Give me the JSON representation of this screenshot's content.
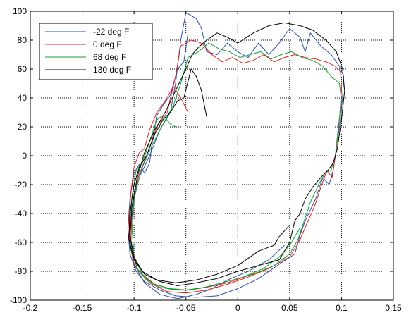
{
  "chart_data": {
    "type": "line",
    "title": "",
    "xlabel": "",
    "ylabel": "",
    "xlim": [
      -0.2,
      0.15
    ],
    "ylim": [
      -100,
      100
    ],
    "xticks": [
      -0.2,
      -0.15,
      -0.1,
      -0.05,
      0,
      0.05,
      0.1,
      0.15
    ],
    "yticks": [
      -100,
      -80,
      -60,
      -40,
      -20,
      0,
      20,
      40,
      60,
      80,
      100
    ],
    "xtick_labels": [
      "-0.2",
      "-0.15",
      "-0.1",
      "-0.05",
      "0",
      "0.05",
      "0.1",
      "0.15"
    ],
    "ytick_labels": [
      "-100",
      "-80",
      "-60",
      "-40",
      "-20",
      "0",
      "20",
      "40",
      "60",
      "80",
      "100"
    ],
    "grid": true,
    "legend_position": "top-left",
    "series": [
      {
        "name": "-22 deg F",
        "color": "#2e4fa8",
        "points": [
          [
            -0.048,
            85
          ],
          [
            -0.052,
            65
          ],
          [
            -0.058,
            60
          ],
          [
            -0.065,
            42
          ],
          [
            -0.072,
            35
          ],
          [
            -0.078,
            28
          ],
          [
            -0.082,
            12
          ],
          [
            -0.085,
            -5
          ],
          [
            -0.09,
            -12
          ],
          [
            -0.095,
            -6
          ],
          [
            -0.1,
            -12
          ],
          [
            -0.104,
            -30
          ],
          [
            -0.106,
            -50
          ],
          [
            -0.104,
            -68
          ],
          [
            -0.098,
            -80
          ],
          [
            -0.09,
            -87
          ],
          [
            -0.075,
            -93
          ],
          [
            -0.06,
            -97
          ],
          [
            -0.04,
            -98
          ],
          [
            -0.02,
            -97
          ],
          [
            0.0,
            -92
          ],
          [
            0.02,
            -85
          ],
          [
            0.04,
            -75
          ],
          [
            0.055,
            -68
          ],
          [
            0.06,
            -55
          ],
          [
            0.065,
            -45
          ],
          [
            0.075,
            -30
          ],
          [
            0.082,
            -15
          ],
          [
            0.088,
            -20
          ],
          [
            0.092,
            -10
          ],
          [
            0.096,
            10
          ],
          [
            0.099,
            25
          ],
          [
            0.101,
            40
          ],
          [
            0.102,
            55
          ],
          [
            0.098,
            62
          ],
          [
            0.09,
            70
          ],
          [
            0.08,
            76
          ],
          [
            0.07,
            85
          ],
          [
            0.065,
            72
          ],
          [
            0.06,
            82
          ],
          [
            0.05,
            88
          ],
          [
            0.04,
            78
          ],
          [
            0.03,
            70
          ],
          [
            0.02,
            78
          ],
          [
            0.01,
            68
          ],
          [
            0.0,
            72
          ],
          [
            -0.01,
            78
          ],
          [
            -0.02,
            70
          ],
          [
            -0.03,
            72
          ],
          [
            -0.035,
            88
          ],
          [
            -0.04,
            95
          ],
          [
            -0.05,
            99
          ],
          [
            -0.055,
            80
          ],
          [
            -0.06,
            50
          ],
          [
            -0.065,
            30
          ],
          [
            -0.075,
            18
          ],
          [
            -0.085,
            0
          ],
          [
            -0.095,
            -15
          ],
          [
            -0.1,
            -30
          ],
          [
            -0.104,
            -55
          ],
          [
            -0.1,
            -75
          ],
          [
            -0.09,
            -88
          ],
          [
            -0.075,
            -96
          ],
          [
            -0.058,
            -99
          ],
          [
            -0.04,
            -96
          ],
          [
            -0.025,
            -92
          ],
          [
            -0.01,
            -86
          ],
          [
            0.01,
            -80
          ],
          [
            0.03,
            -72
          ],
          [
            0.045,
            -62
          ]
        ]
      },
      {
        "name": "0 deg F",
        "color": "#e0201e",
        "points": [
          [
            -0.048,
            30
          ],
          [
            -0.055,
            40
          ],
          [
            -0.062,
            48
          ],
          [
            -0.07,
            38
          ],
          [
            -0.078,
            30
          ],
          [
            -0.085,
            18
          ],
          [
            -0.09,
            5
          ],
          [
            -0.095,
            2
          ],
          [
            -0.1,
            -8
          ],
          [
            -0.103,
            -25
          ],
          [
            -0.105,
            -45
          ],
          [
            -0.104,
            -62
          ],
          [
            -0.1,
            -75
          ],
          [
            -0.092,
            -83
          ],
          [
            -0.08,
            -89
          ],
          [
            -0.065,
            -92
          ],
          [
            -0.048,
            -93
          ],
          [
            -0.03,
            -91
          ],
          [
            -0.01,
            -88
          ],
          [
            0.01,
            -83
          ],
          [
            0.03,
            -78
          ],
          [
            0.05,
            -70
          ],
          [
            0.06,
            -58
          ],
          [
            0.066,
            -48
          ],
          [
            0.074,
            -35
          ],
          [
            0.08,
            -22
          ],
          [
            0.086,
            -10
          ],
          [
            0.091,
            -15
          ],
          [
            0.095,
            5
          ],
          [
            0.098,
            25
          ],
          [
            0.1,
            45
          ],
          [
            0.099,
            58
          ],
          [
            0.094,
            62
          ],
          [
            0.085,
            65
          ],
          [
            0.075,
            67
          ],
          [
            0.065,
            68
          ],
          [
            0.055,
            70
          ],
          [
            0.045,
            68
          ],
          [
            0.035,
            65
          ],
          [
            0.025,
            70
          ],
          [
            0.015,
            66
          ],
          [
            0.005,
            64
          ],
          [
            -0.005,
            68
          ],
          [
            -0.015,
            65
          ],
          [
            -0.025,
            70
          ],
          [
            -0.035,
            78
          ],
          [
            -0.045,
            80
          ],
          [
            -0.055,
            76
          ],
          [
            -0.06,
            55
          ],
          [
            -0.068,
            30
          ],
          [
            -0.078,
            20
          ],
          [
            -0.088,
            0
          ],
          [
            -0.096,
            -15
          ],
          [
            -0.102,
            -35
          ],
          [
            -0.103,
            -60
          ],
          [
            -0.097,
            -78
          ],
          [
            -0.085,
            -88
          ],
          [
            -0.068,
            -94
          ],
          [
            -0.05,
            -95
          ],
          [
            -0.03,
            -93
          ],
          [
            -0.01,
            -89
          ],
          [
            0.01,
            -84
          ],
          [
            0.03,
            -78
          ]
        ]
      },
      {
        "name": "68 deg F",
        "color": "#15a235",
        "points": [
          [
            -0.06,
            20
          ],
          [
            -0.065,
            22
          ],
          [
            -0.072,
            28
          ],
          [
            -0.078,
            25
          ],
          [
            -0.085,
            10
          ],
          [
            -0.092,
            -5
          ],
          [
            -0.098,
            -10
          ],
          [
            -0.102,
            -28
          ],
          [
            -0.104,
            -48
          ],
          [
            -0.103,
            -65
          ],
          [
            -0.097,
            -78
          ],
          [
            -0.088,
            -86
          ],
          [
            -0.075,
            -91
          ],
          [
            -0.06,
            -93
          ],
          [
            -0.045,
            -93
          ],
          [
            -0.025,
            -90
          ],
          [
            -0.005,
            -86
          ],
          [
            0.015,
            -82
          ],
          [
            0.035,
            -76
          ],
          [
            0.05,
            -68
          ],
          [
            0.058,
            -58
          ],
          [
            0.064,
            -45
          ],
          [
            0.07,
            -32
          ],
          [
            0.078,
            -20
          ],
          [
            0.084,
            -12
          ],
          [
            0.09,
            -10
          ],
          [
            0.094,
            0
          ],
          [
            0.097,
            20
          ],
          [
            0.1,
            38
          ],
          [
            0.098,
            50
          ],
          [
            0.09,
            55
          ],
          [
            0.082,
            62
          ],
          [
            0.072,
            66
          ],
          [
            0.062,
            68
          ],
          [
            0.052,
            72
          ],
          [
            0.042,
            70
          ],
          [
            0.032,
            67
          ],
          [
            0.022,
            72
          ],
          [
            0.012,
            70
          ],
          [
            0.002,
            68
          ],
          [
            -0.008,
            72
          ],
          [
            -0.018,
            74
          ],
          [
            -0.028,
            78
          ],
          [
            -0.038,
            72
          ],
          [
            -0.048,
            68
          ],
          [
            -0.055,
            50
          ],
          [
            -0.062,
            35
          ],
          [
            -0.072,
            22
          ],
          [
            -0.082,
            8
          ],
          [
            -0.092,
            -8
          ],
          [
            -0.099,
            -25
          ],
          [
            -0.102,
            -50
          ],
          [
            -0.1,
            -70
          ],
          [
            -0.092,
            -82
          ],
          [
            -0.08,
            -89
          ],
          [
            -0.065,
            -92
          ],
          [
            -0.05,
            -93
          ],
          [
            -0.032,
            -91
          ],
          [
            -0.015,
            -88
          ],
          [
            0.005,
            -84
          ],
          [
            0.025,
            -78
          ],
          [
            0.04,
            -70
          ],
          [
            0.05,
            -62
          ],
          [
            0.06,
            -50
          ]
        ]
      },
      {
        "name": "130 deg F",
        "color": "#000000",
        "points": [
          [
            -0.03,
            27
          ],
          [
            -0.035,
            45
          ],
          [
            -0.04,
            55
          ],
          [
            -0.045,
            60
          ],
          [
            -0.052,
            40
          ],
          [
            -0.058,
            38
          ],
          [
            -0.065,
            30
          ],
          [
            -0.072,
            25
          ],
          [
            -0.08,
            15
          ],
          [
            -0.088,
            0
          ],
          [
            -0.095,
            -8
          ],
          [
            -0.1,
            -20
          ],
          [
            -0.104,
            -40
          ],
          [
            -0.105,
            -58
          ],
          [
            -0.1,
            -72
          ],
          [
            -0.09,
            -82
          ],
          [
            -0.075,
            -87
          ],
          [
            -0.058,
            -90
          ],
          [
            -0.04,
            -88
          ],
          [
            -0.02,
            -85
          ],
          [
            0.0,
            -80
          ],
          [
            0.02,
            -76
          ],
          [
            0.04,
            -72
          ],
          [
            0.05,
            -60
          ],
          [
            0.055,
            -45
          ],
          [
            0.06,
            -40
          ],
          [
            0.065,
            -30
          ],
          [
            0.072,
            -22
          ],
          [
            0.08,
            -15
          ],
          [
            0.087,
            -10
          ],
          [
            0.092,
            -5
          ],
          [
            0.096,
            5
          ],
          [
            0.1,
            25
          ],
          [
            0.103,
            45
          ],
          [
            0.101,
            60
          ],
          [
            0.095,
            72
          ],
          [
            0.085,
            80
          ],
          [
            0.072,
            87
          ],
          [
            0.06,
            90
          ],
          [
            0.045,
            92
          ],
          [
            0.03,
            90
          ],
          [
            0.015,
            85
          ],
          [
            0.0,
            78
          ],
          [
            -0.01,
            82
          ],
          [
            -0.02,
            85
          ],
          [
            -0.03,
            80
          ],
          [
            -0.038,
            75
          ],
          [
            -0.044,
            70
          ],
          [
            -0.05,
            60
          ],
          [
            -0.06,
            45
          ],
          [
            -0.07,
            30
          ],
          [
            -0.08,
            18
          ],
          [
            -0.09,
            2
          ],
          [
            -0.097,
            -15
          ],
          [
            -0.102,
            -35
          ],
          [
            -0.104,
            -55
          ],
          [
            -0.1,
            -70
          ],
          [
            -0.092,
            -80
          ],
          [
            -0.078,
            -86
          ],
          [
            -0.06,
            -88
          ],
          [
            -0.04,
            -86
          ],
          [
            -0.02,
            -82
          ],
          [
            0.0,
            -76
          ],
          [
            0.02,
            -66
          ],
          [
            0.035,
            -62
          ],
          [
            0.04,
            -56
          ],
          [
            0.05,
            -48
          ]
        ]
      }
    ]
  }
}
